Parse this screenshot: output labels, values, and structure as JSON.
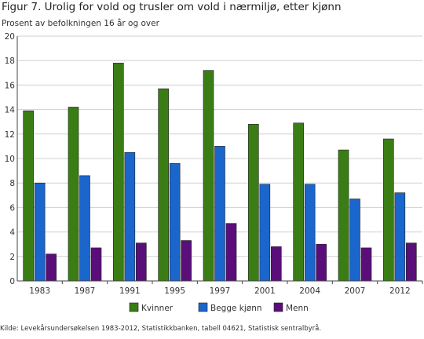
{
  "title": "Figur 7. Urolig for vold og trusler om vold i nærmiljø, etter kjønn",
  "subtitle": "Prosent av befolkningen 16 år og over",
  "source": "Kilde: Levekårsundersøkelsen 1983-2012, Statistikkbanken, tabell 04621, Statistisk sentralbyrå.",
  "chart_data": {
    "type": "bar",
    "categories": [
      "1983",
      "1987",
      "1991",
      "1995",
      "1997",
      "2001",
      "2004",
      "2007",
      "2012"
    ],
    "series": [
      {
        "name": "Kvinner",
        "color": "#3a7d14",
        "values": [
          13.9,
          14.2,
          17.8,
          15.7,
          17.2,
          12.8,
          12.9,
          10.7,
          11.6
        ]
      },
      {
        "name": "Begge kjønn",
        "color": "#1a66cc",
        "values": [
          8.0,
          8.6,
          10.5,
          9.6,
          11.0,
          7.9,
          7.9,
          6.7,
          7.2
        ]
      },
      {
        "name": "Menn",
        "color": "#5a0e7a",
        "values": [
          2.2,
          2.7,
          3.1,
          3.3,
          4.7,
          2.8,
          3.0,
          2.7,
          3.1
        ]
      }
    ],
    "ylim": [
      0,
      20
    ],
    "yticks": [
      "0",
      "2",
      "4",
      "6",
      "8",
      "10",
      "12",
      "14",
      "16",
      "18",
      "20"
    ],
    "grid": true,
    "legend_position": "bottom"
  }
}
